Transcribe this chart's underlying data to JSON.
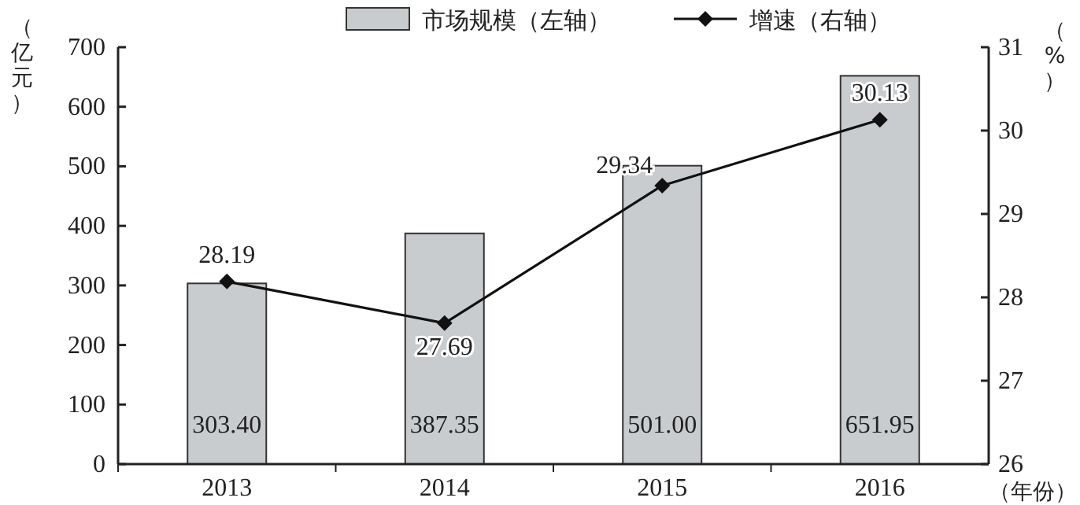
{
  "chart_data": {
    "type": "bar",
    "categories": [
      "2013",
      "2014",
      "2015",
      "2016"
    ],
    "ylabel": "（亿元）",
    "y2label": "（%）",
    "xlabel": "（年份）",
    "ylim": [
      0,
      700
    ],
    "yticks": [
      0,
      100,
      200,
      300,
      400,
      500,
      600,
      700
    ],
    "y2lim": [
      26,
      31
    ],
    "y2ticks": [
      26,
      27,
      28,
      29,
      30,
      31
    ],
    "legend": "top",
    "grid": false,
    "series": [
      {
        "name": "市场规模（左轴）",
        "color": "#c9cccf",
        "values": [
          303.4,
          387.35,
          501.0,
          651.95
        ],
        "value_labels": [
          "303.40",
          "387.35",
          "501.00",
          "651.95"
        ]
      },
      {
        "name": "增速（右轴）",
        "type": "line",
        "axis": "y2",
        "color": "#111111",
        "marker": "diamond",
        "line_style": "solid",
        "values": [
          28.19,
          27.69,
          29.34,
          30.13
        ],
        "value_labels": [
          "28.19",
          "27.69",
          "29.34",
          "30.13"
        ]
      }
    ]
  }
}
